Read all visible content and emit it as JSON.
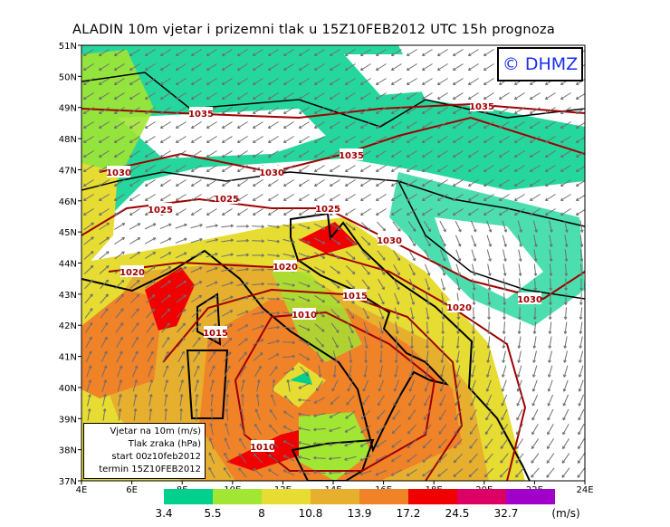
{
  "title": "ALADIN 10m vjetar i prizemni tlak u 15Z10FEB2012 UTC 15h prognoza",
  "logo": "© DHMZ",
  "lat_labels": [
    "51N",
    "50N",
    "49N",
    "48N",
    "47N",
    "46N",
    "45N",
    "44N",
    "43N",
    "42N",
    "41N",
    "40N",
    "39N",
    "38N",
    "37N"
  ],
  "lon_labels": [
    "4E",
    "6E",
    "8E",
    "10E",
    "12E",
    "14E",
    "16E",
    "18E",
    "20E",
    "22E",
    "24E"
  ],
  "info_box": {
    "line1": "Vjetar na 10m (m/s)",
    "line2": "Tlak zraka (hPa)",
    "line3": "start 00z10feb2012",
    "line4": "termin 15Z10FEB2012"
  },
  "isobar_labels": [
    "1035",
    "1035",
    "1035",
    "1030",
    "1030",
    "1030",
    "1030",
    "1025",
    "1025",
    "1025",
    "1020",
    "1020",
    "1020",
    "1015",
    "1015",
    "1010",
    "1010"
  ],
  "colorbar": {
    "unit": "(m/s)",
    "ticks": [
      "3.4",
      "5.5",
      "8",
      "10.8",
      "13.9",
      "17.2",
      "24.5",
      "32.7"
    ],
    "colors": [
      "#00d08c",
      "#a0e632",
      "#e6dc32",
      "#e6af2d",
      "#f08228",
      "#f00000",
      "#dc0064",
      "#a000c8"
    ]
  },
  "colors": {
    "isobar": "#a00000",
    "arrow": "#6e6e6e",
    "border": "#000000"
  }
}
